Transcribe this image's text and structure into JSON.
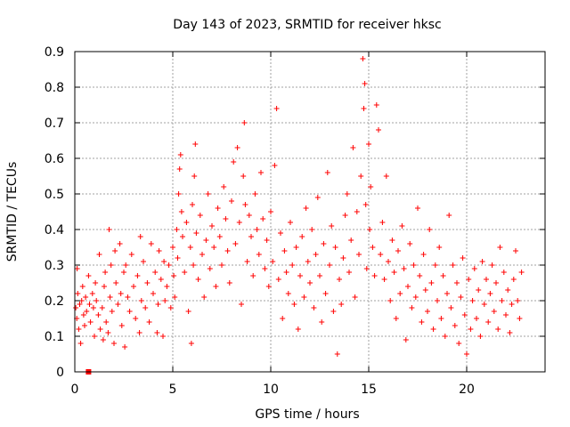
{
  "chart_data": {
    "type": "scatter",
    "title": "Day 143 of 2023, SRMTID for receiver hksc",
    "xlabel": "GPS time / hours",
    "ylabel": "SRMTID / TECUs",
    "xlim": [
      0,
      24
    ],
    "ylim": [
      0,
      0.9
    ],
    "xticks": [
      0,
      5,
      10,
      15,
      20
    ],
    "xtick_labels": [
      "0",
      "5",
      "10",
      "15",
      "20"
    ],
    "yticks": [
      0,
      0.1,
      0.2,
      0.3,
      0.4,
      0.5,
      0.6,
      0.7,
      0.8,
      0.9
    ],
    "ytick_labels": [
      "0",
      "0.1",
      "0.2",
      "0.3",
      "0.4",
      "0.5",
      "0.6",
      "0.7",
      "0.8",
      "0.9"
    ],
    "grid": true,
    "marker": "+",
    "colors": {
      "series": "#ff0000",
      "grid": "#a0a0a0",
      "axis": "#000000"
    },
    "series": [
      {
        "name": "SRMTID",
        "points": [
          [
            0.05,
            0.18
          ],
          [
            0.1,
            0.15
          ],
          [
            0.12,
            0.29
          ],
          [
            0.15,
            0.22
          ],
          [
            0.2,
            0.12
          ],
          [
            0.25,
            0.19
          ],
          [
            0.3,
            0.08
          ],
          [
            0.35,
            0.2
          ],
          [
            0.4,
            0.24
          ],
          [
            0.45,
            0.16
          ],
          [
            0.5,
            0.13
          ],
          [
            0.55,
            0.21
          ],
          [
            0.6,
            0.17
          ],
          [
            0.7,
            0.27
          ],
          [
            0.75,
            0.19
          ],
          [
            0.8,
            0.14
          ],
          [
            0.9,
            0.22
          ],
          [
            0.95,
            0.18
          ],
          [
            1.0,
            0.1
          ],
          [
            1.05,
            0.25
          ],
          [
            1.1,
            0.2
          ],
          [
            1.2,
            0.16
          ],
          [
            1.25,
            0.33
          ],
          [
            1.3,
            0.12
          ],
          [
            1.4,
            0.18
          ],
          [
            1.45,
            0.09
          ],
          [
            1.5,
            0.24
          ],
          [
            1.55,
            0.28
          ],
          [
            1.6,
            0.14
          ],
          [
            1.7,
            0.11
          ],
          [
            1.75,
            0.4
          ],
          [
            1.8,
            0.21
          ],
          [
            1.85,
            0.3
          ],
          [
            1.9,
            0.17
          ],
          [
            2.0,
            0.08
          ],
          [
            2.05,
            0.34
          ],
          [
            2.1,
            0.25
          ],
          [
            2.2,
            0.19
          ],
          [
            2.3,
            0.36
          ],
          [
            2.35,
            0.22
          ],
          [
            2.4,
            0.13
          ],
          [
            2.5,
            0.28
          ],
          [
            2.55,
            0.07
          ],
          [
            2.6,
            0.3
          ],
          [
            2.7,
            0.21
          ],
          [
            2.8,
            0.17
          ],
          [
            2.9,
            0.33
          ],
          [
            3.0,
            0.24
          ],
          [
            3.1,
            0.15
          ],
          [
            3.2,
            0.27
          ],
          [
            3.3,
            0.11
          ],
          [
            3.35,
            0.38
          ],
          [
            3.4,
            0.2
          ],
          [
            3.5,
            0.31
          ],
          [
            3.6,
            0.18
          ],
          [
            3.7,
            0.25
          ],
          [
            3.8,
            0.14
          ],
          [
            3.9,
            0.36
          ],
          [
            4.0,
            0.22
          ],
          [
            4.1,
            0.28
          ],
          [
            4.2,
            0.11
          ],
          [
            4.25,
            0.19
          ],
          [
            4.3,
            0.34
          ],
          [
            4.4,
            0.26
          ],
          [
            4.5,
            0.1
          ],
          [
            4.55,
            0.31
          ],
          [
            4.6,
            0.2
          ],
          [
            4.7,
            0.24
          ],
          [
            4.8,
            0.3
          ],
          [
            4.9,
            0.18
          ],
          [
            5.0,
            0.35
          ],
          [
            5.05,
            0.27
          ],
          [
            5.1,
            0.21
          ],
          [
            5.2,
            0.4
          ],
          [
            5.25,
            0.32
          ],
          [
            5.3,
            0.5
          ],
          [
            5.35,
            0.57
          ],
          [
            5.4,
            0.61
          ],
          [
            5.45,
            0.45
          ],
          [
            5.5,
            0.38
          ],
          [
            5.6,
            0.28
          ],
          [
            5.7,
            0.42
          ],
          [
            5.8,
            0.17
          ],
          [
            5.9,
            0.35
          ],
          [
            5.95,
            0.08
          ],
          [
            6.0,
            0.47
          ],
          [
            6.05,
            0.3
          ],
          [
            6.1,
            0.55
          ],
          [
            6.15,
            0.64
          ],
          [
            6.2,
            0.39
          ],
          [
            6.3,
            0.26
          ],
          [
            6.4,
            0.44
          ],
          [
            6.5,
            0.33
          ],
          [
            6.6,
            0.21
          ],
          [
            6.7,
            0.37
          ],
          [
            6.8,
            0.5
          ],
          [
            6.9,
            0.29
          ],
          [
            7.0,
            0.41
          ],
          [
            7.1,
            0.35
          ],
          [
            7.2,
            0.24
          ],
          [
            7.3,
            0.46
          ],
          [
            7.4,
            0.38
          ],
          [
            7.5,
            0.3
          ],
          [
            7.6,
            0.52
          ],
          [
            7.7,
            0.43
          ],
          [
            7.8,
            0.34
          ],
          [
            7.9,
            0.25
          ],
          [
            8.0,
            0.48
          ],
          [
            8.1,
            0.59
          ],
          [
            8.2,
            0.36
          ],
          [
            8.3,
            0.63
          ],
          [
            8.4,
            0.42
          ],
          [
            8.5,
            0.19
          ],
          [
            8.6,
            0.55
          ],
          [
            8.65,
            0.7
          ],
          [
            8.7,
            0.47
          ],
          [
            8.8,
            0.31
          ],
          [
            8.9,
            0.44
          ],
          [
            9.0,
            0.38
          ],
          [
            9.1,
            0.27
          ],
          [
            9.2,
            0.5
          ],
          [
            9.3,
            0.4
          ],
          [
            9.4,
            0.33
          ],
          [
            9.5,
            0.56
          ],
          [
            9.6,
            0.43
          ],
          [
            9.7,
            0.29
          ],
          [
            9.8,
            0.37
          ],
          [
            9.9,
            0.24
          ],
          [
            10.0,
            0.45
          ],
          [
            10.1,
            0.31
          ],
          [
            10.2,
            0.58
          ],
          [
            10.3,
            0.74
          ],
          [
            10.4,
            0.26
          ],
          [
            10.5,
            0.39
          ],
          [
            10.6,
            0.15
          ],
          [
            10.7,
            0.34
          ],
          [
            10.8,
            0.28
          ],
          [
            10.9,
            0.22
          ],
          [
            11.0,
            0.42
          ],
          [
            11.1,
            0.3
          ],
          [
            11.2,
            0.19
          ],
          [
            11.3,
            0.35
          ],
          [
            11.4,
            0.12
          ],
          [
            11.5,
            0.27
          ],
          [
            11.6,
            0.38
          ],
          [
            11.7,
            0.21
          ],
          [
            11.8,
            0.46
          ],
          [
            11.9,
            0.31
          ],
          [
            12.0,
            0.25
          ],
          [
            12.1,
            0.4
          ],
          [
            12.2,
            0.18
          ],
          [
            12.3,
            0.33
          ],
          [
            12.4,
            0.49
          ],
          [
            12.5,
            0.27
          ],
          [
            12.6,
            0.14
          ],
          [
            12.7,
            0.36
          ],
          [
            12.8,
            0.22
          ],
          [
            12.9,
            0.56
          ],
          [
            13.0,
            0.3
          ],
          [
            13.1,
            0.41
          ],
          [
            13.2,
            0.17
          ],
          [
            13.3,
            0.35
          ],
          [
            13.4,
            0.05
          ],
          [
            13.5,
            0.26
          ],
          [
            13.6,
            0.19
          ],
          [
            13.7,
            0.32
          ],
          [
            13.8,
            0.44
          ],
          [
            13.9,
            0.5
          ],
          [
            14.0,
            0.28
          ],
          [
            14.1,
            0.37
          ],
          [
            14.2,
            0.63
          ],
          [
            14.3,
            0.21
          ],
          [
            14.4,
            0.45
          ],
          [
            14.5,
            0.33
          ],
          [
            14.6,
            0.55
          ],
          [
            14.7,
            0.88
          ],
          [
            14.75,
            0.74
          ],
          [
            14.8,
            0.81
          ],
          [
            14.85,
            0.47
          ],
          [
            14.9,
            0.29
          ],
          [
            15.0,
            0.64
          ],
          [
            15.05,
            0.4
          ],
          [
            15.1,
            0.52
          ],
          [
            15.2,
            0.35
          ],
          [
            15.3,
            0.27
          ],
          [
            15.4,
            0.75
          ],
          [
            15.5,
            0.68
          ],
          [
            15.6,
            0.33
          ],
          [
            15.7,
            0.42
          ],
          [
            15.8,
            0.26
          ],
          [
            15.9,
            0.55
          ],
          [
            16.0,
            0.31
          ],
          [
            16.1,
            0.2
          ],
          [
            16.2,
            0.37
          ],
          [
            16.3,
            0.28
          ],
          [
            16.4,
            0.15
          ],
          [
            16.5,
            0.34
          ],
          [
            16.6,
            0.22
          ],
          [
            16.7,
            0.41
          ],
          [
            16.8,
            0.29
          ],
          [
            16.9,
            0.09
          ],
          [
            17.0,
            0.24
          ],
          [
            17.1,
            0.36
          ],
          [
            17.2,
            0.18
          ],
          [
            17.3,
            0.3
          ],
          [
            17.4,
            0.21
          ],
          [
            17.5,
            0.46
          ],
          [
            17.6,
            0.27
          ],
          [
            17.7,
            0.14
          ],
          [
            17.8,
            0.33
          ],
          [
            17.9,
            0.23
          ],
          [
            18.0,
            0.17
          ],
          [
            18.1,
            0.4
          ],
          [
            18.2,
            0.25
          ],
          [
            18.3,
            0.12
          ],
          [
            18.4,
            0.3
          ],
          [
            18.5,
            0.2
          ],
          [
            18.6,
            0.35
          ],
          [
            18.7,
            0.15
          ],
          [
            18.8,
            0.27
          ],
          [
            18.9,
            0.1
          ],
          [
            19.0,
            0.22
          ],
          [
            19.1,
            0.44
          ],
          [
            19.2,
            0.18
          ],
          [
            19.3,
            0.3
          ],
          [
            19.4,
            0.13
          ],
          [
            19.5,
            0.25
          ],
          [
            19.6,
            0.08
          ],
          [
            19.7,
            0.21
          ],
          [
            19.8,
            0.32
          ],
          [
            19.9,
            0.16
          ],
          [
            20.0,
            0.05
          ],
          [
            20.1,
            0.26
          ],
          [
            20.2,
            0.12
          ],
          [
            20.3,
            0.2
          ],
          [
            20.4,
            0.29
          ],
          [
            20.5,
            0.15
          ],
          [
            20.6,
            0.23
          ],
          [
            20.7,
            0.1
          ],
          [
            20.8,
            0.31
          ],
          [
            20.9,
            0.19
          ],
          [
            21.0,
            0.26
          ],
          [
            21.1,
            0.14
          ],
          [
            21.2,
            0.22
          ],
          [
            21.3,
            0.3
          ],
          [
            21.4,
            0.17
          ],
          [
            21.5,
            0.25
          ],
          [
            21.6,
            0.12
          ],
          [
            21.7,
            0.35
          ],
          [
            21.8,
            0.2
          ],
          [
            21.9,
            0.28
          ],
          [
            22.0,
            0.16
          ],
          [
            22.1,
            0.23
          ],
          [
            22.2,
            0.11
          ],
          [
            22.3,
            0.19
          ],
          [
            22.4,
            0.26
          ],
          [
            22.5,
            0.34
          ],
          [
            22.6,
            0.2
          ],
          [
            22.7,
            0.15
          ],
          [
            22.8,
            0.28
          ]
        ]
      }
    ],
    "outlier_marker": {
      "x": 0.7,
      "y": 0.0
    }
  }
}
